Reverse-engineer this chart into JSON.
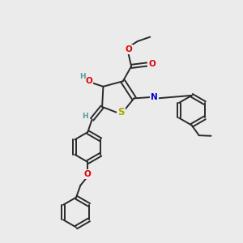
{
  "bg_color": "#ebebeb",
  "bond_color": "#2a2a2a",
  "line_width": 1.4,
  "atom_colors": {
    "O": "#e00000",
    "N": "#0000dd",
    "S": "#aaaa00",
    "H": "#5a9a9a",
    "C": "#2a2a2a"
  },
  "font_size": 7.5
}
